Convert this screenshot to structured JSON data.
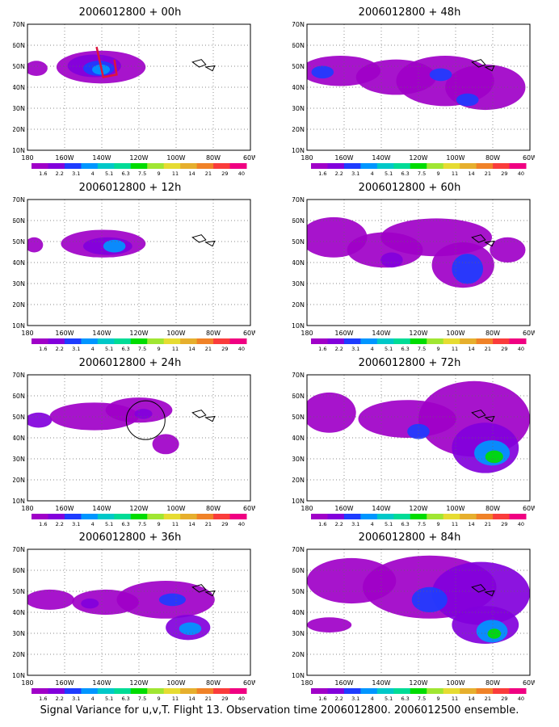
{
  "caption": "Signal Variance for u,v,T. Flight 13. Observation time 2006012800. 2006012500 ensemble.",
  "map": {
    "lat_labels": [
      "70N",
      "60N",
      "50N",
      "40N",
      "30N",
      "20N",
      "10N"
    ],
    "lon_labels": [
      "180",
      "160W",
      "140W",
      "120W",
      "100W",
      "80W",
      "60W"
    ]
  },
  "colorbar": {
    "labels": [
      "1.6",
      "2.2",
      "3.1",
      "4",
      "5.1",
      "6.3",
      "7.5",
      "9",
      "11",
      "14",
      "21",
      "29",
      "40"
    ],
    "colors": [
      "#a000c8",
      "#8200dc",
      "#1e3cff",
      "#0096ff",
      "#00c8c8",
      "#00dc96",
      "#00dc00",
      "#a0e632",
      "#e6dc32",
      "#e6af2d",
      "#f08228",
      "#fa3c3c",
      "#f00082"
    ]
  },
  "panels": [
    {
      "title": "2006012800 + 00h"
    },
    {
      "title": "2006012800 + 48h"
    },
    {
      "title": "2006012800 + 12h"
    },
    {
      "title": "2006012800 + 60h"
    },
    {
      "title": "2006012800 + 24h"
    },
    {
      "title": "2006012800 + 72h"
    },
    {
      "title": "2006012800 + 36h"
    },
    {
      "title": "2006012800 + 84h"
    }
  ]
}
